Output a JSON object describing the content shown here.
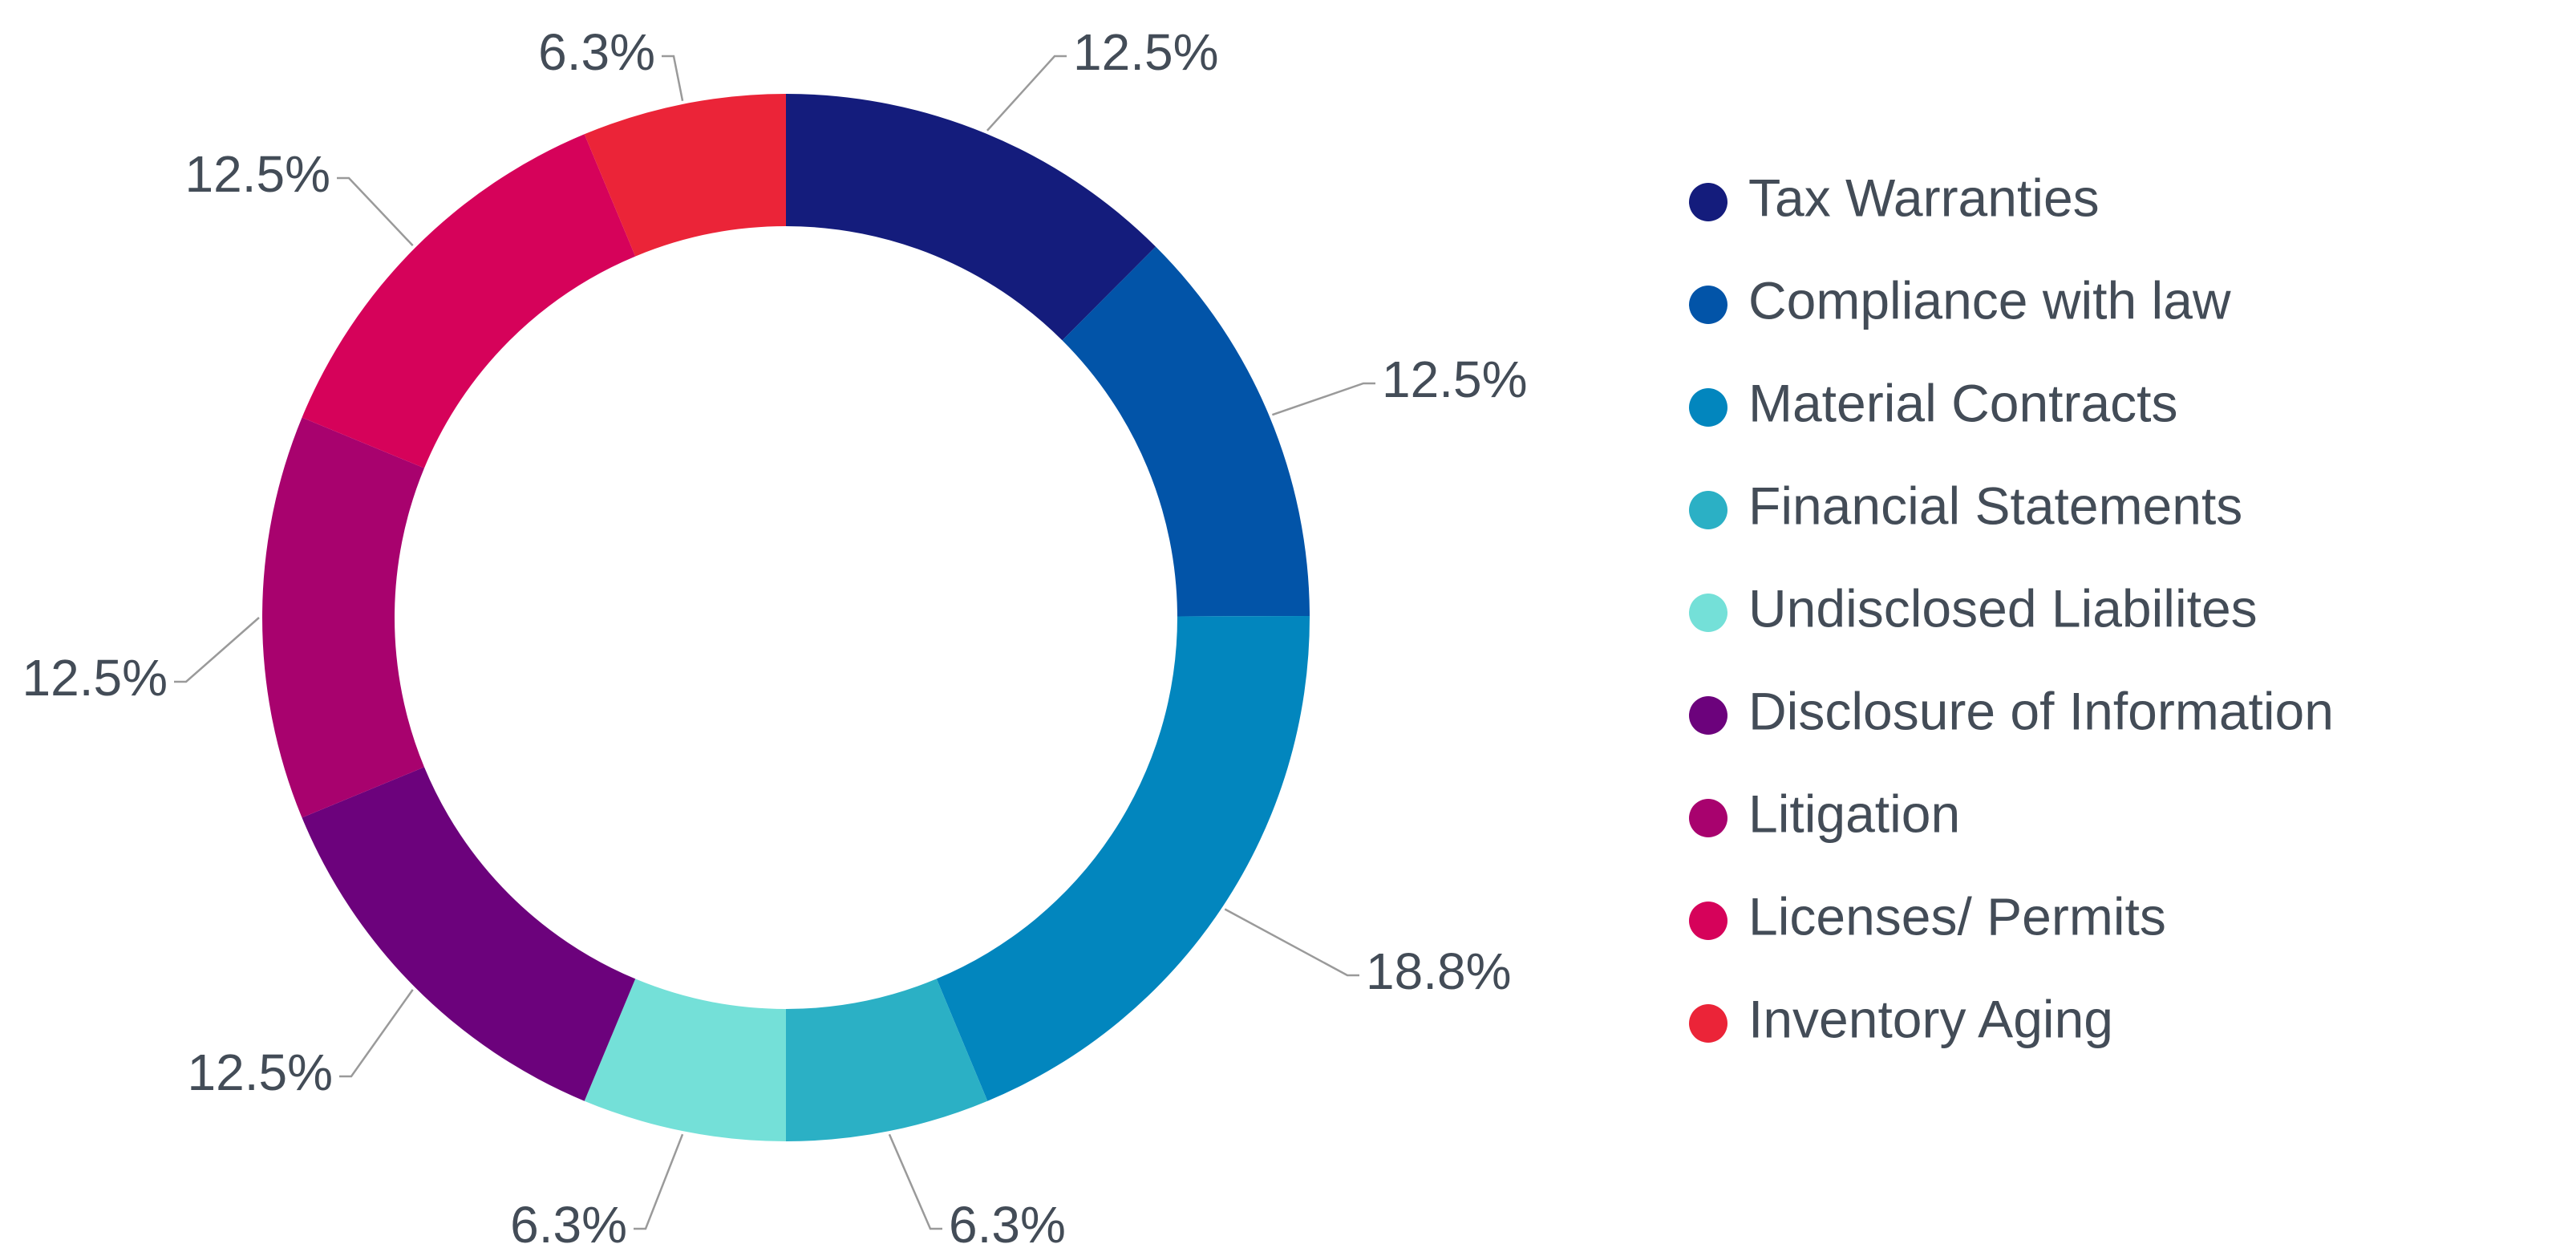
{
  "chart_data": {
    "type": "pie",
    "variant": "donut",
    "title": "",
    "categories": [
      "Tax Warranties",
      "Compliance with law",
      "Material Contracts",
      "Financial Statements",
      "Undisclosed Liabilites",
      "Disclosure of Information",
      "Litigation",
      "Licenses/ Permits",
      "Inventory Aging"
    ],
    "values": [
      12.5,
      12.5,
      18.8,
      6.3,
      6.3,
      12.5,
      12.5,
      12.5,
      6.3
    ],
    "labels": [
      "12.5%",
      "12.5%",
      "18.8%",
      "6.3%",
      "6.3%",
      "12.5%",
      "12.5%",
      "12.5%",
      "6.3%"
    ],
    "colors": [
      "#141c7c",
      "#0254a8",
      "#0286be",
      "#2bb0c5",
      "#74e0d8",
      "#6c027c",
      "#a8026e",
      "#d6025a",
      "#eb2438"
    ],
    "legend_position": "right"
  }
}
